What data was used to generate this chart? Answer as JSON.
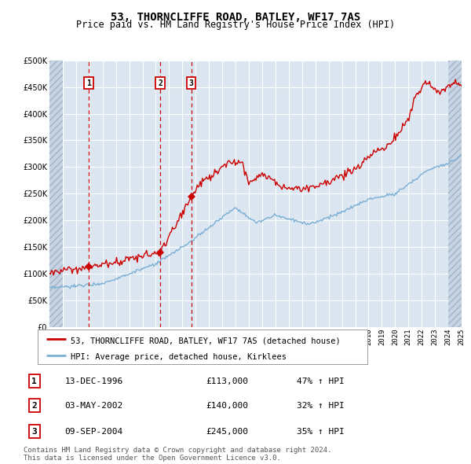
{
  "title": "53, THORNCLIFFE ROAD, BATLEY, WF17 7AS",
  "subtitle": "Price paid vs. HM Land Registry's House Price Index (HPI)",
  "sale_label": "53, THORNCLIFFE ROAD, BATLEY, WF17 7AS (detached house)",
  "hpi_label": "HPI: Average price, detached house, Kirklees",
  "sale_color": "#cc0000",
  "hpi_color": "#7bafd4",
  "background_color": "#ffffff",
  "plot_bg_color": "#dce6f1",
  "grid_color": "#ffffff",
  "sales": [
    {
      "num": 1,
      "date_label": "13-DEC-1996",
      "x_year": 1996.95,
      "price": 113000,
      "pct": "47% ↑ HPI"
    },
    {
      "num": 2,
      "date_label": "03-MAY-2002",
      "x_year": 2002.33,
      "price": 140000,
      "pct": "32% ↑ HPI"
    },
    {
      "num": 3,
      "date_label": "09-SEP-2004",
      "x_year": 2004.67,
      "price": 245000,
      "pct": "35% ↑ HPI"
    }
  ],
  "ylabel_ticks": [
    0,
    50000,
    100000,
    150000,
    200000,
    250000,
    300000,
    350000,
    400000,
    450000,
    500000
  ],
  "xmin": 1994,
  "xmax": 2025,
  "ymin": 0,
  "ymax": 500000,
  "footer": "Contains HM Land Registry data © Crown copyright and database right 2024.\nThis data is licensed under the Open Government Licence v3.0.",
  "title_fontsize": 10,
  "subtitle_fontsize": 8.5,
  "tick_fontsize": 7,
  "legend_fontsize": 7.5,
  "table_fontsize": 8,
  "footer_fontsize": 6.5
}
